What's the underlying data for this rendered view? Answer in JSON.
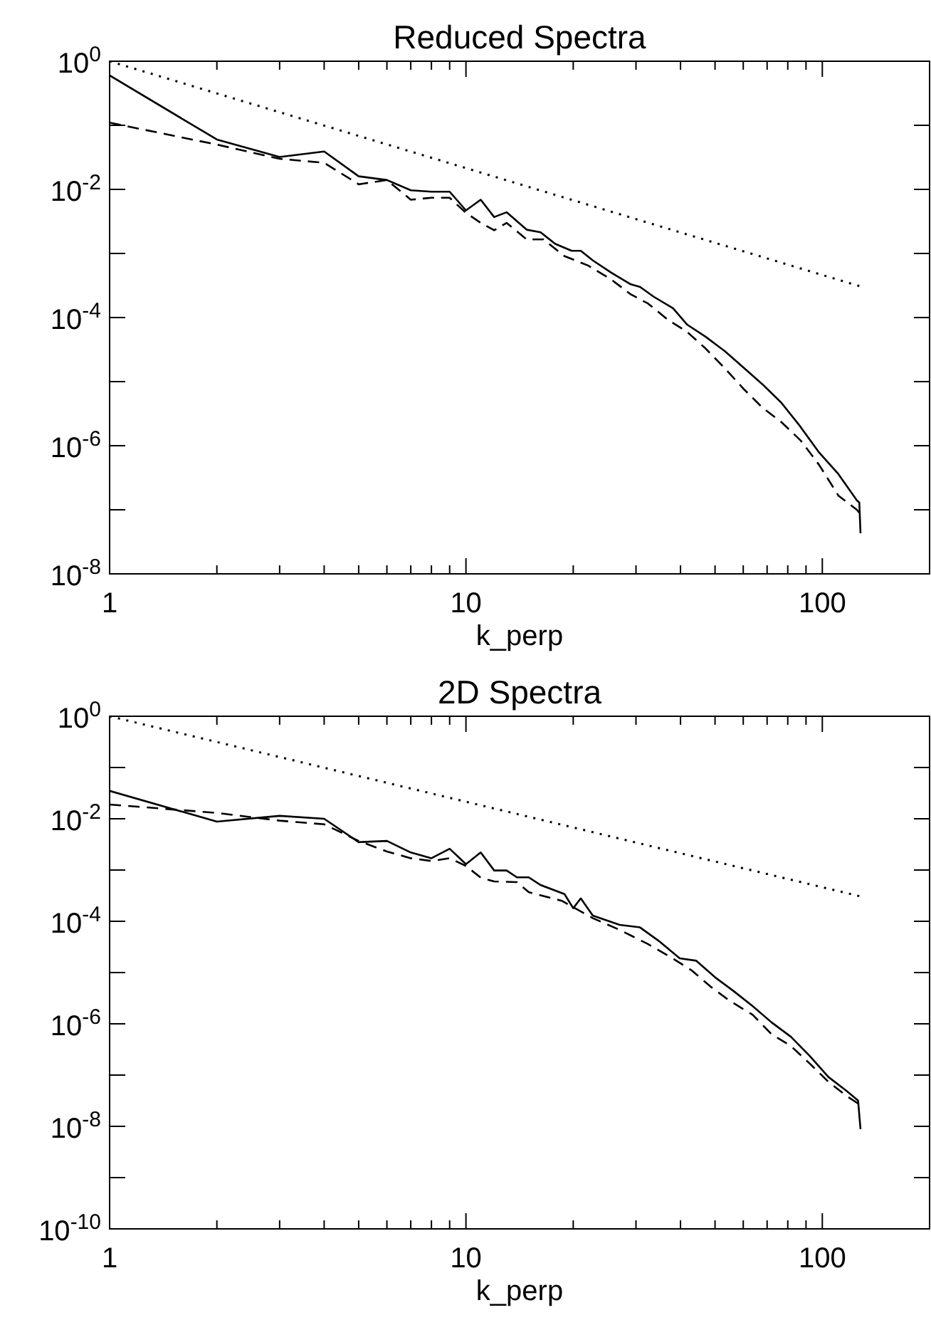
{
  "chart_data": [
    {
      "type": "line",
      "title": "Reduced Spectra",
      "xlabel": "k_perp",
      "log": "xy",
      "xlim": [
        1,
        200
      ],
      "ylim": [
        1e-08,
        1
      ],
      "xticks": [
        1,
        {
          "value": 2,
          "label": null
        },
        {
          "value": 3,
          "label": null
        },
        {
          "value": 4,
          "label": null
        },
        {
          "value": 5,
          "label": null
        },
        {
          "value": 6,
          "label": null
        },
        {
          "value": 7,
          "label": null
        },
        {
          "value": 8,
          "label": null
        },
        {
          "value": 9,
          "label": null
        },
        10,
        {
          "value": 20,
          "label": null
        },
        {
          "value": 30,
          "label": null
        },
        {
          "value": 40,
          "label": null
        },
        {
          "value": 50,
          "label": null
        },
        {
          "value": 60,
          "label": null
        },
        {
          "value": 70,
          "label": null
        },
        {
          "value": 80,
          "label": null
        },
        {
          "value": 90,
          "label": null
        },
        100,
        {
          "value": 200,
          "label": null
        }
      ],
      "yticks": [
        {
          "value": 1e-08,
          "label": "10$^{-8}$"
        },
        {
          "value": 1e-07,
          "label": null
        },
        {
          "value": 1e-06,
          "label": "10$^{-6}$"
        },
        {
          "value": 1e-05,
          "label": null
        },
        {
          "value": 0.0001,
          "label": "10$^{-4}$"
        },
        {
          "value": 0.001,
          "label": null
        },
        {
          "value": 0.01,
          "label": "10$^{-2}$"
        },
        {
          "value": 0.1,
          "label": null
        },
        {
          "value": 1,
          "label": "10$^{0}$"
        }
      ],
      "series": [
        {
          "color": "#000000",
          "line_style": "solid",
          "x": [
            1,
            2,
            3,
            4,
            5,
            6,
            7,
            8,
            9,
            10,
            11,
            12,
            13,
            14.8,
            16.2,
            17.8,
            19.8,
            21,
            22.7,
            25.6,
            29,
            30.8,
            33.7,
            38.1,
            41.7,
            47.1,
            53.2,
            60.1,
            67.9,
            76.7,
            86.7,
            98,
            111,
            125,
            127,
            128
          ],
          "values": [
            0.6,
            0.06,
            0.032,
            0.039,
            0.016,
            0.014,
            0.0097,
            0.0092,
            0.0092,
            0.0047,
            0.0069,
            0.0037,
            0.0044,
            0.00235,
            0.00214,
            0.00141,
            0.0011,
            0.0011,
            0.00078,
            0.0005,
            0.00033,
            0.0003,
            0.00021,
            0.00014,
            7.8e-05,
            5e-05,
            3e-05,
            1.66e-05,
            9.1e-06,
            4.7e-06,
            2e-06,
            7.8e-07,
            3.6e-07,
            1.4e-07,
            1.3e-07,
            4.3e-08
          ]
        },
        {
          "color": "#000000",
          "line_style": "dashed",
          "x": [
            1,
            2,
            3,
            4,
            5,
            6,
            7,
            8,
            9,
            10,
            11,
            12,
            13,
            14.8,
            16.5,
            18.9,
            22,
            25.6,
            29,
            32.4,
            37,
            41.7,
            47,
            53,
            60,
            68,
            77,
            87,
            98,
            111,
            125,
            127
          ],
          "values": [
            0.11,
            0.05,
            0.03,
            0.026,
            0.012,
            0.014,
            0.0069,
            0.0074,
            0.0074,
            0.0043,
            0.003,
            0.0023,
            0.003,
            0.00166,
            0.00166,
            0.00091,
            0.00065,
            0.00039,
            0.00023,
            0.000166,
            9.1e-05,
            6e-05,
            3.3e-05,
            1.66e-05,
            7.8e-06,
            3.9e-06,
            2.3e-06,
            1.2e-06,
            5e-07,
            1.66e-07,
            1e-07,
            9e-08
          ]
        },
        {
          "color": "#000000",
          "line_style": "dotted",
          "x": [
            1,
            127
          ],
          "values": [
            1,
            0.00031
          ]
        }
      ]
    },
    {
      "type": "line",
      "title": "2D Spectra",
      "xlabel": "k_perp",
      "log": "xy",
      "xlim": [
        1,
        200
      ],
      "ylim": [
        1e-10,
        1
      ],
      "xticks": [
        1,
        {
          "value": 2,
          "label": null
        },
        {
          "value": 3,
          "label": null
        },
        {
          "value": 4,
          "label": null
        },
        {
          "value": 5,
          "label": null
        },
        {
          "value": 6,
          "label": null
        },
        {
          "value": 7,
          "label": null
        },
        {
          "value": 8,
          "label": null
        },
        {
          "value": 9,
          "label": null
        },
        10,
        {
          "value": 20,
          "label": null
        },
        {
          "value": 30,
          "label": null
        },
        {
          "value": 40,
          "label": null
        },
        {
          "value": 50,
          "label": null
        },
        {
          "value": 60,
          "label": null
        },
        {
          "value": 70,
          "label": null
        },
        {
          "value": 80,
          "label": null
        },
        {
          "value": 90,
          "label": null
        },
        100,
        {
          "value": 200,
          "label": null
        }
      ],
      "yticks": [
        {
          "value": 1e-10,
          "label": "10$^{-10}$"
        },
        {
          "value": 1e-09,
          "label": null
        },
        {
          "value": 1e-08,
          "label": "10$^{-8}$"
        },
        {
          "value": 1e-07,
          "label": null
        },
        {
          "value": 1e-06,
          "label": "10$^{-6}$"
        },
        {
          "value": 1e-05,
          "label": null
        },
        {
          "value": 0.0001,
          "label": "10$^{-4}$"
        },
        {
          "value": 0.001,
          "label": null
        },
        {
          "value": 0.01,
          "label": "10$^{-2}$"
        },
        {
          "value": 0.1,
          "label": null
        },
        {
          "value": 1,
          "label": "10$^{0}$"
        }
      ],
      "series": [
        {
          "color": "#000000",
          "line_style": "solid",
          "x": [
            1,
            2,
            3,
            4,
            5,
            6,
            7,
            8,
            9,
            10,
            11,
            12,
            13,
            13.9,
            15,
            16.2,
            18.9,
            20,
            21,
            22.7,
            27,
            30.8,
            35,
            39.8,
            44.3,
            50,
            56.5,
            63.8,
            72,
            81.6,
            92,
            104,
            117,
            126,
            128
          ],
          "values": [
            0.035,
            0.0088,
            0.0114,
            0.01,
            0.0035,
            0.0037,
            0.0022,
            0.0017,
            0.0026,
            0.0013,
            0.0022,
            0.00098,
            0.00098,
            0.00072,
            0.00072,
            0.00051,
            0.00034,
            0.00018,
            0.00028,
            0.000129,
            8.5e-05,
            7.6e-05,
            4e-05,
            1.9e-05,
            1.7e-05,
            8.1e-06,
            4.3e-06,
            2.2e-06,
            1.07e-06,
            5.6e-07,
            2.4e-07,
            9.2e-08,
            4.9e-08,
            3.2e-08,
            8.8e-09
          ]
        },
        {
          "color": "#000000",
          "line_style": "dashed",
          "x": [
            1,
            2,
            3,
            4,
            5,
            6,
            7,
            8,
            9,
            10,
            11,
            12,
            13.9,
            15,
            18.6,
            22.7,
            27,
            32.4,
            38,
            43,
            48.6,
            55,
            63.8,
            72,
            81.6,
            92,
            104,
            117,
            126
          ],
          "values": [
            0.019,
            0.013,
            0.0092,
            0.0078,
            0.0037,
            0.0023,
            0.0017,
            0.0015,
            0.0017,
            0.0012,
            0.00071,
            0.0006,
            0.00058,
            0.00037,
            0.00025,
            0.000115,
            6.8e-05,
            3.6e-05,
            1.9e-05,
            1.1e-05,
            5.3e-06,
            2.8e-06,
            1.5e-06,
            6.3e-07,
            3.7e-07,
            1.7e-07,
            7.4e-08,
            3.9e-08,
            2.8e-08
          ]
        },
        {
          "color": "#000000",
          "line_style": "dotted",
          "x": [
            1,
            127
          ],
          "values": [
            1,
            0.00031
          ]
        }
      ]
    }
  ]
}
